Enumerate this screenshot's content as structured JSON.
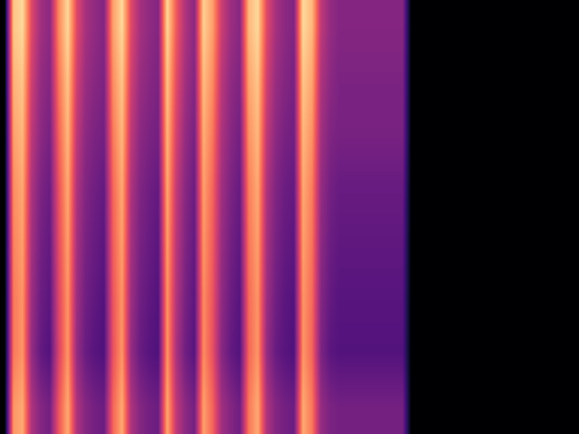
{
  "chart_data": {
    "type": "heatmap",
    "tick_labels": false,
    "color_range": [
      0,
      100
    ],
    "cells": [
      [
        0,
        88,
        92,
        60,
        45,
        40,
        75,
        92,
        60,
        46,
        41,
        38,
        80,
        92,
        60,
        46,
        41,
        38,
        92,
        65,
        48,
        40,
        90,
        80,
        55,
        44,
        39,
        85,
        92,
        60,
        46,
        40,
        37,
        92,
        85,
        52,
        42,
        38,
        38,
        38,
        38,
        38,
        38,
        38,
        38,
        0,
        0,
        0,
        0,
        0,
        0,
        0,
        0,
        0,
        0,
        0,
        0,
        0,
        0,
        0,
        0,
        0,
        0,
        0
      ],
      [
        0,
        84,
        88,
        56,
        42,
        38,
        71,
        88,
        56,
        43,
        39,
        36,
        76,
        88,
        56,
        43,
        39,
        36,
        88,
        61,
        45,
        38,
        86,
        76,
        51,
        41,
        37,
        81,
        88,
        56,
        43,
        38,
        35,
        88,
        81,
        48,
        40,
        36,
        36,
        36,
        36,
        36,
        36,
        36,
        36,
        0,
        0,
        0,
        0,
        0,
        0,
        0,
        0,
        0,
        0,
        0,
        0,
        0,
        0,
        0,
        0,
        0,
        0,
        0
      ],
      [
        0,
        80,
        85,
        52,
        40,
        35,
        67,
        85,
        52,
        40,
        36,
        34,
        72,
        85,
        52,
        40,
        36,
        34,
        85,
        57,
        42,
        35,
        83,
        72,
        48,
        39,
        34,
        77,
        85,
        52,
        40,
        35,
        33,
        85,
        77,
        45,
        37,
        35,
        35,
        35,
        35,
        35,
        35,
        35,
        35,
        0,
        0,
        0,
        0,
        0,
        0,
        0,
        0,
        0,
        0,
        0,
        0,
        0,
        0,
        0,
        0,
        0,
        0,
        0
      ],
      [
        0,
        76,
        82,
        48,
        36,
        32,
        63,
        82,
        48,
        37,
        33,
        30,
        68,
        82,
        48,
        37,
        33,
        30,
        82,
        53,
        39,
        32,
        80,
        68,
        45,
        36,
        31,
        73,
        82,
        48,
        37,
        32,
        30,
        82,
        73,
        42,
        34,
        31,
        31,
        31,
        31,
        31,
        31,
        31,
        31,
        0,
        0,
        0,
        0,
        0,
        0,
        0,
        0,
        0,
        0,
        0,
        0,
        0,
        0,
        0,
        0,
        0,
        0,
        0
      ],
      [
        0,
        74,
        80,
        46,
        34,
        30,
        61,
        80,
        46,
        35,
        31,
        28,
        66,
        80,
        46,
        35,
        31,
        28,
        80,
        51,
        37,
        30,
        78,
        66,
        43,
        34,
        29,
        71,
        80,
        46,
        35,
        30,
        28,
        80,
        71,
        40,
        32,
        29,
        29,
        29,
        29,
        29,
        29,
        29,
        29,
        0,
        0,
        0,
        0,
        0,
        0,
        0,
        0,
        0,
        0,
        0,
        0,
        0,
        0,
        0,
        0,
        0,
        0,
        0
      ],
      [
        0,
        72,
        78,
        44,
        32,
        28,
        59,
        78,
        44,
        33,
        29,
        26,
        64,
        78,
        44,
        33,
        29,
        26,
        78,
        49,
        35,
        28,
        76,
        64,
        41,
        32,
        27,
        69,
        78,
        44,
        33,
        28,
        26,
        78,
        69,
        38,
        30,
        27,
        27,
        27,
        27,
        27,
        27,
        27,
        27,
        0,
        0,
        0,
        0,
        0,
        0,
        0,
        0,
        0,
        0,
        0,
        0,
        0,
        0,
        0,
        0,
        0,
        0,
        0
      ],
      [
        0,
        72,
        78,
        42,
        30,
        26,
        58,
        78,
        42,
        31,
        27,
        25,
        63,
        78,
        42,
        31,
        27,
        25,
        78,
        47,
        33,
        27,
        76,
        63,
        39,
        30,
        26,
        68,
        78,
        42,
        31,
        27,
        25,
        78,
        68,
        36,
        28,
        26,
        26,
        26,
        26,
        26,
        26,
        26,
        26,
        0,
        0,
        0,
        0,
        0,
        0,
        0,
        0,
        0,
        0,
        0,
        0,
        0,
        0,
        0,
        0,
        0,
        0,
        0
      ],
      [
        0,
        78,
        82,
        48,
        38,
        34,
        64,
        82,
        48,
        38,
        34,
        32,
        68,
        82,
        48,
        38,
        34,
        32,
        82,
        52,
        40,
        34,
        80,
        68,
        45,
        38,
        33,
        72,
        82,
        48,
        38,
        34,
        32,
        82,
        72,
        42,
        36,
        34,
        34,
        34,
        34,
        34,
        34,
        34,
        34,
        0,
        0,
        0,
        0,
        0,
        0,
        0,
        0,
        0,
        0,
        0,
        0,
        0,
        0,
        0,
        0,
        0,
        0,
        0
      ]
    ]
  }
}
